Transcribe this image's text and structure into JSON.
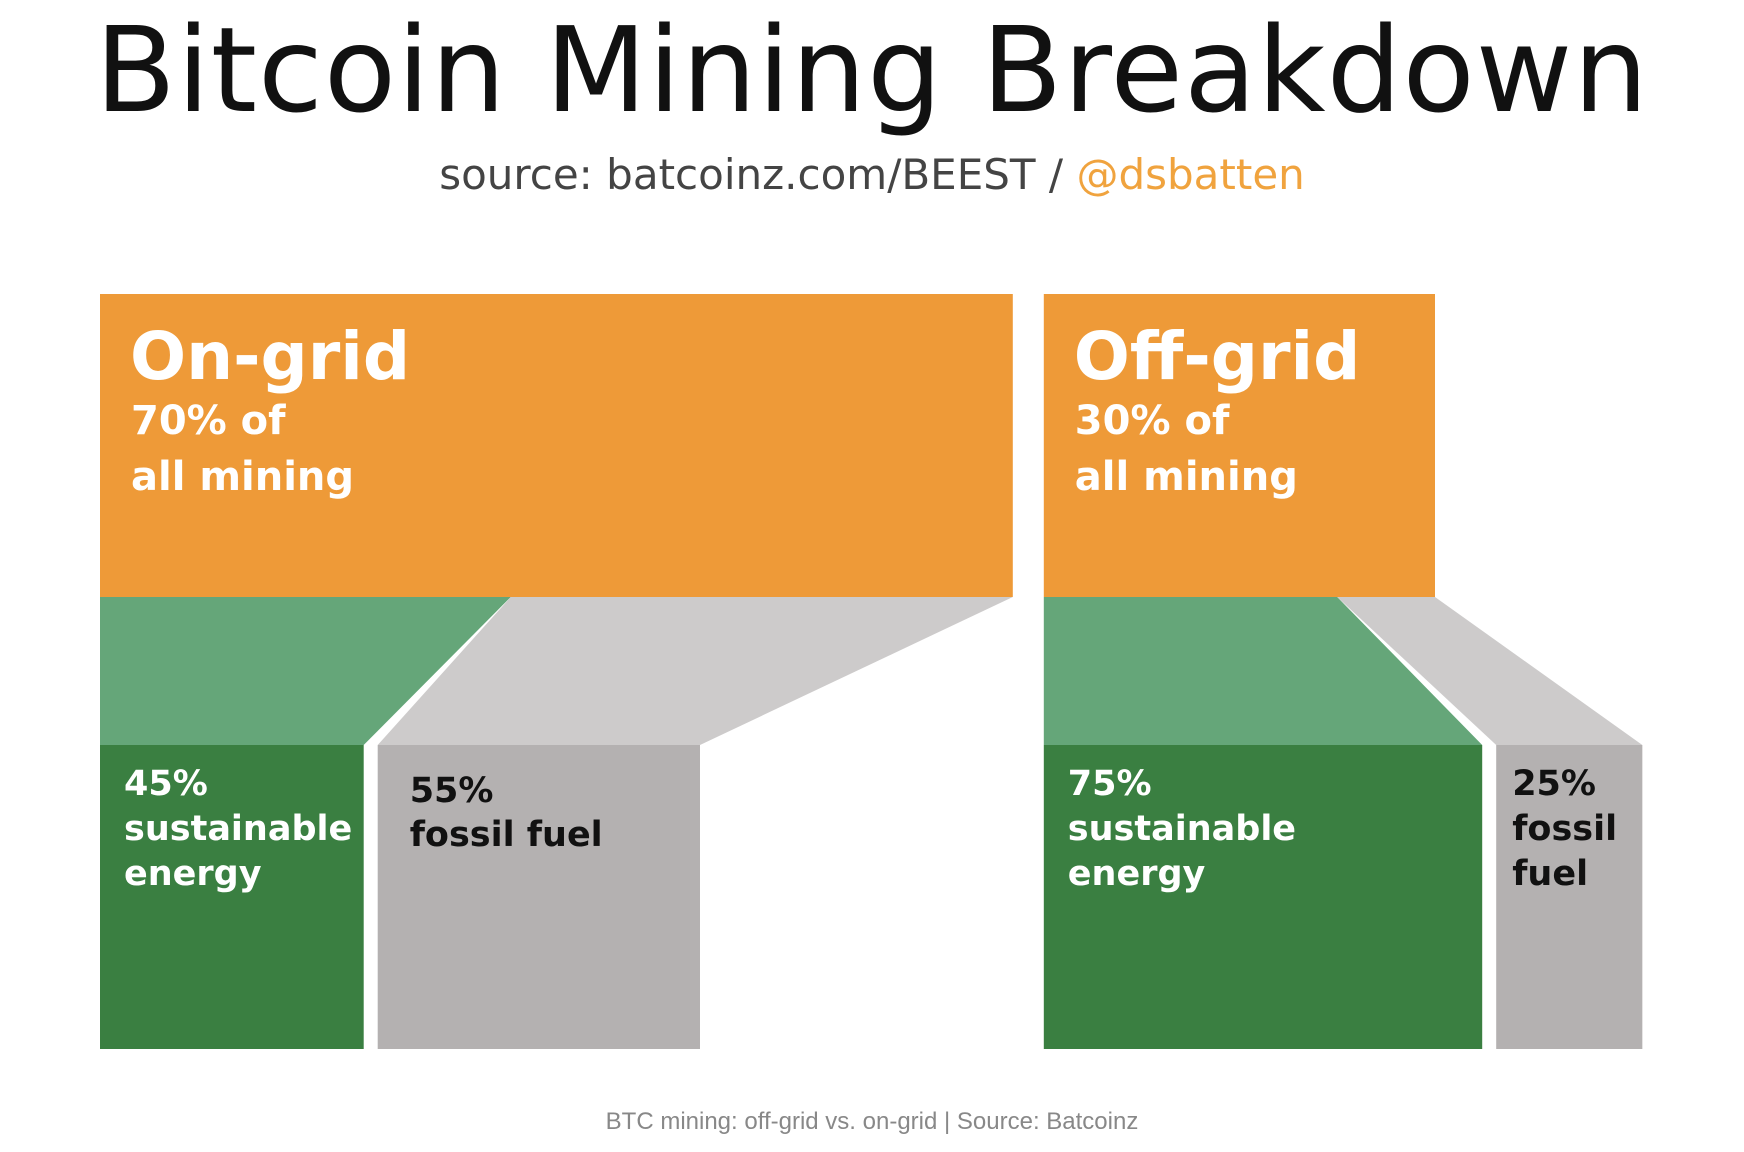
{
  "title": "Bitcoin Mining Breakdown",
  "subtitle": {
    "text": "source: batcoinz.com/BEEST /",
    "handle": "@dsbatten"
  },
  "caption": "BTC mining: off-grid vs. on-grid | Source: Batcoinz",
  "colors": {
    "grid_block": "#ee9a38",
    "sustainable_flow": "#65a679",
    "sustainable": "#3a7f41",
    "fossil_flow": "#cdcbcb",
    "fossil": "#b4b1b1",
    "handle": "#f0a33e"
  },
  "chart_data": {
    "type": "bar",
    "groups": [
      {
        "name": "On-grid",
        "lines": [
          "70% of",
          "all mining"
        ],
        "share": 70,
        "segments": [
          {
            "lines": [
              "45%",
              "sustainable",
              "energy"
            ],
            "value": 45,
            "kind": "sustainable"
          },
          {
            "lines": [
              "55%",
              "fossil fuel"
            ],
            "value": 55,
            "kind": "fossil"
          }
        ]
      },
      {
        "name": "Off-grid",
        "lines": [
          "30% of",
          "all mining"
        ],
        "share": 30,
        "segments": [
          {
            "lines": [
              "75%",
              "sustainable",
              "energy"
            ],
            "value": 75,
            "kind": "sustainable"
          },
          {
            "lines": [
              "25%",
              "fossil",
              "fuel"
            ],
            "value": 25,
            "kind": "fossil"
          }
        ]
      }
    ]
  }
}
